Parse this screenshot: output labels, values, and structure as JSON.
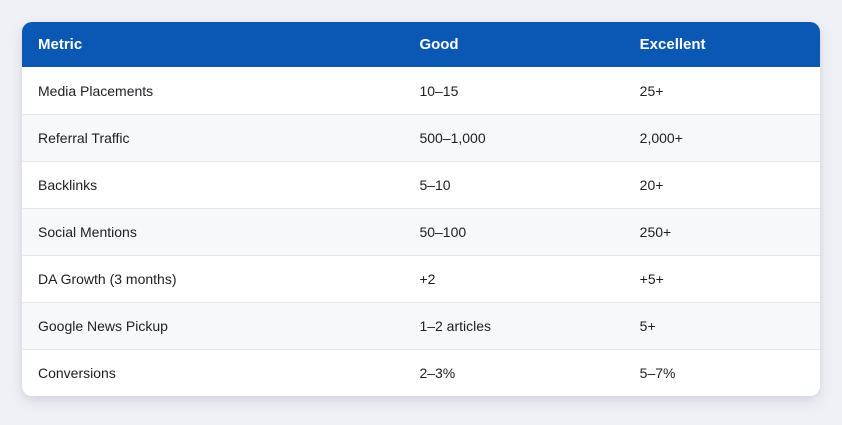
{
  "table": {
    "columns": [
      {
        "key": "metric",
        "label": "Metric"
      },
      {
        "key": "good",
        "label": "Good"
      },
      {
        "key": "excellent",
        "label": "Excellent"
      }
    ],
    "rows": [
      {
        "metric": "Media Placements",
        "good": "10–15",
        "excellent": "25+"
      },
      {
        "metric": "Referral Traffic",
        "good": "500–1,000",
        "excellent": "2,000+"
      },
      {
        "metric": "Backlinks",
        "good": "5–10",
        "excellent": "20+"
      },
      {
        "metric": "Social Mentions",
        "good": "50–100",
        "excellent": "250+"
      },
      {
        "metric": "DA Growth (3 months)",
        "good": "+2",
        "excellent": "+5+"
      },
      {
        "metric": "Google News Pickup",
        "good": "1–2 articles",
        "excellent": "5+"
      },
      {
        "metric": "Conversions",
        "good": "2–3%",
        "excellent": "5–7%"
      }
    ]
  },
  "colors": {
    "header_bg": "#0a58b4",
    "header_text": "#ffffff",
    "page_bg": "#f0f1f6",
    "card_bg": "#ffffff",
    "row_alt_bg": "#f7f8fa",
    "divider": "#e7e8ec",
    "text": "#1c1e21"
  },
  "chart_data": {
    "type": "table",
    "title": "",
    "columns": [
      "Metric",
      "Good",
      "Excellent"
    ],
    "rows": [
      [
        "Media Placements",
        "10–15",
        "25+"
      ],
      [
        "Referral Traffic",
        "500–1,000",
        "2,000+"
      ],
      [
        "Backlinks",
        "5–10",
        "20+"
      ],
      [
        "Social Mentions",
        "50–100",
        "250+"
      ],
      [
        "DA Growth (3 months)",
        "+2",
        "+5+"
      ],
      [
        "Google News Pickup",
        "1–2 articles",
        "5+"
      ],
      [
        "Conversions",
        "2–3%",
        "5–7%"
      ]
    ],
    "layout_hints": {
      "header_style": "solid blue background, white bold text",
      "row_striping": "odd rows white, even rows very light gray",
      "card": "rounded corners with soft drop shadow on light gray page background"
    }
  }
}
